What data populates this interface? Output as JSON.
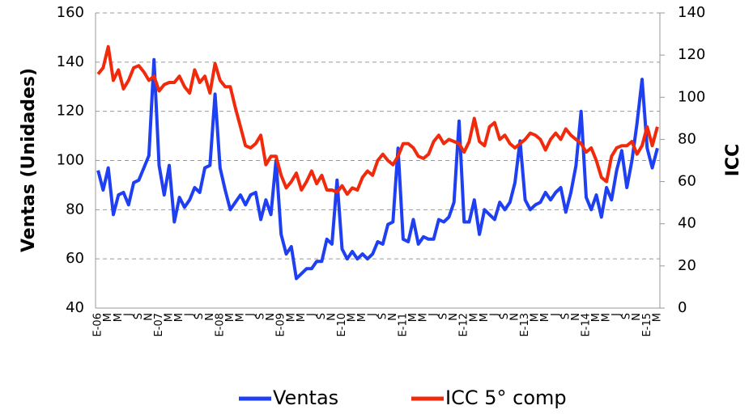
{
  "chart_data": {
    "type": "line",
    "categories": [
      "E-06",
      null,
      "M",
      null,
      "M",
      null,
      "J",
      null,
      "S",
      null,
      "N",
      null,
      "E-07",
      null,
      "M",
      null,
      "M",
      null,
      "J",
      null,
      "S",
      null,
      "N",
      null,
      "E-08",
      null,
      "M",
      null,
      "M",
      null,
      "J",
      null,
      "S",
      null,
      "N",
      null,
      "E-09",
      null,
      "M",
      null,
      "M",
      null,
      "J",
      null,
      "S",
      null,
      "N",
      null,
      "E-10",
      null,
      "M",
      null,
      "M",
      null,
      "J",
      null,
      "S",
      null,
      "N",
      null,
      "E-11",
      null,
      "M",
      null,
      "M",
      null,
      "J",
      null,
      "S",
      null,
      "N",
      null,
      "E-12",
      null,
      "M",
      null,
      "M",
      null,
      "J",
      null,
      "S",
      null,
      "N",
      null,
      "E-13",
      null,
      "M",
      null,
      "M",
      null,
      "J",
      null,
      "S",
      null,
      "N",
      null,
      "E-14",
      null,
      "M",
      null,
      "M",
      null,
      "J",
      null,
      "S",
      null,
      "N",
      null,
      "E-15",
      null,
      "M"
    ],
    "series": [
      {
        "name": "Ventas",
        "color": "#1f3ff2",
        "axis": "y",
        "values": [
          96,
          88,
          97,
          78,
          86,
          87,
          82,
          91,
          92,
          97,
          102,
          141,
          98,
          86,
          98,
          75,
          85,
          81,
          84,
          89,
          87,
          97,
          98,
          127,
          97,
          88,
          80,
          83,
          86,
          82,
          86,
          87,
          76,
          84,
          78,
          100,
          70,
          62,
          65,
          52,
          54,
          56,
          56,
          59,
          59,
          68,
          66,
          92,
          64,
          60,
          63,
          60,
          62,
          60,
          62,
          67,
          66,
          74,
          75,
          105,
          68,
          67,
          76,
          66,
          69,
          68,
          68,
          76,
          75,
          77,
          83,
          116,
          75,
          75,
          84,
          70,
          80,
          78,
          76,
          83,
          80,
          83,
          91,
          108,
          84,
          80,
          82,
          83,
          87,
          84,
          87,
          89,
          79,
          87,
          98,
          120,
          85,
          80,
          86,
          77,
          89,
          84,
          96,
          104,
          89,
          100,
          115,
          133,
          105,
          97,
          105
        ]
      },
      {
        "name": "ICC 5° comp",
        "color": "#f22a0c",
        "axis": "y2",
        "values": [
          111,
          114,
          124,
          108,
          113,
          104,
          108,
          114,
          115,
          112,
          108,
          110,
          103,
          106,
          107,
          107,
          110,
          105,
          102,
          113,
          107,
          110,
          102,
          116,
          108,
          105,
          105,
          95,
          86,
          77,
          76,
          78,
          82,
          68,
          72,
          72,
          63,
          57,
          60,
          64,
          56,
          60,
          65,
          59,
          63,
          56,
          56,
          55,
          58,
          54,
          57,
          56,
          62,
          65,
          63,
          70,
          73,
          70,
          68,
          72,
          78,
          78,
          76,
          72,
          71,
          73,
          79,
          82,
          78,
          80,
          79,
          78,
          74,
          79,
          90,
          79,
          77,
          86,
          88,
          80,
          82,
          78,
          76,
          78,
          80,
          83,
          82,
          80,
          75,
          80,
          83,
          80,
          85,
          82,
          80,
          78,
          74,
          76,
          70,
          62,
          60,
          72,
          76,
          77,
          77,
          79,
          73,
          77,
          86,
          77,
          86
        ]
      }
    ],
    "ylabel": "Ventas (Unidades)",
    "y2label": "ICC",
    "ylim": [
      40,
      160
    ],
    "yticks": [
      40,
      60,
      80,
      100,
      120,
      140,
      160
    ],
    "y2lim": [
      0,
      140
    ],
    "y2ticks": [
      0,
      20,
      40,
      60,
      80,
      100,
      120,
      140
    ],
    "grid": true,
    "legend": "bottom"
  }
}
